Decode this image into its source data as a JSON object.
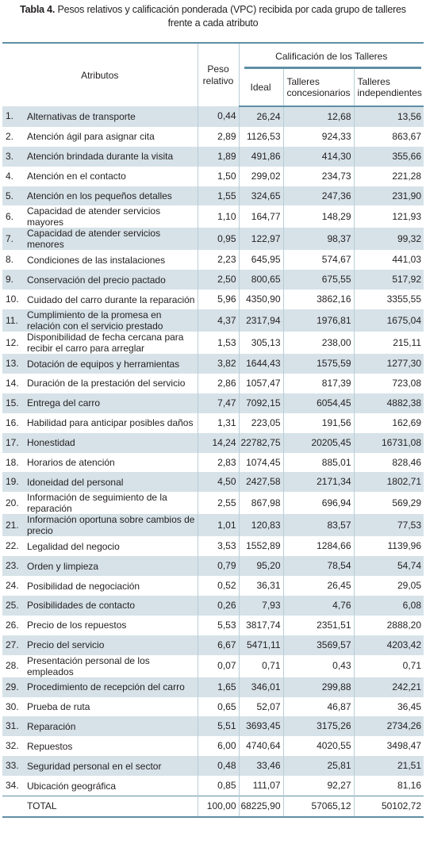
{
  "caption": {
    "label": "Tabla 4.",
    "line1": "Pesos relativos y calificación ponderada (VPC) recibida por cada grupo de talleres",
    "line2": "frente a cada atributo"
  },
  "headers": {
    "atributos": "Atributos",
    "peso_line1": "Peso",
    "peso_line2": "relativo",
    "calificacion": "Calificación de los Talleres",
    "ideal": "Ideal",
    "conc_line1": "Talleres",
    "conc_line2": "concesionarios",
    "indep_line1": "Talleres",
    "indep_line2": "independientes"
  },
  "rows": [
    {
      "num": "1.",
      "name": "Alternativas de transporte",
      "peso": "0,44",
      "ideal": "26,24",
      "conc": "12,68",
      "indep": "13,56"
    },
    {
      "num": "2.",
      "name": "Atención ágil para asignar cita",
      "peso": "2,89",
      "ideal": "1126,53",
      "conc": "924,33",
      "indep": "863,67"
    },
    {
      "num": "3.",
      "name": "Atención brindada durante la visita",
      "peso": "1,89",
      "ideal": "491,86",
      "conc": "414,30",
      "indep": "355,66"
    },
    {
      "num": "4.",
      "name": "Atención en el contacto",
      "peso": "1,50",
      "ideal": "299,02",
      "conc": "234,73",
      "indep": "221,28"
    },
    {
      "num": "5.",
      "name": "Atención en los pequeños detalles",
      "peso": "1,55",
      "ideal": "324,65",
      "conc": "247,36",
      "indep": "231,90"
    },
    {
      "num": "6.",
      "name": "Capacidad de atender servicios mayores",
      "peso": "1,10",
      "ideal": "164,77",
      "conc": "148,29",
      "indep": "121,93"
    },
    {
      "num": "7.",
      "name": "Capacidad de atender servicios menores",
      "peso": "0,95",
      "ideal": "122,97",
      "conc": "98,37",
      "indep": "99,32"
    },
    {
      "num": "8.",
      "name": "Condiciones de las instalaciones",
      "peso": "2,23",
      "ideal": "645,95",
      "conc": "574,67",
      "indep": "441,03"
    },
    {
      "num": "9.",
      "name": "Conservación del precio pactado",
      "peso": "2,50",
      "ideal": "800,65",
      "conc": "675,55",
      "indep": "517,92"
    },
    {
      "num": "10.",
      "name": "Cuidado del carro durante la reparación",
      "peso": "5,96",
      "ideal": "4350,90",
      "conc": "3862,16",
      "indep": "3355,55"
    },
    {
      "num": "11.",
      "name": "Cumplimiento de la promesa en relación con el servicio prestado",
      "peso": "4,37",
      "ideal": "2317,94",
      "conc": "1976,81",
      "indep": "1675,04"
    },
    {
      "num": "12.",
      "name": "Disponibilidad de fecha cercana para recibir el carro para arreglar",
      "peso": "1,53",
      "ideal": "305,13",
      "conc": "238,00",
      "indep": "215,11"
    },
    {
      "num": "13.",
      "name": "Dotación de equipos y herramientas",
      "peso": "3,82",
      "ideal": "1644,43",
      "conc": "1575,59",
      "indep": "1277,30"
    },
    {
      "num": "14.",
      "name": "Duración de la prestación del servicio",
      "peso": "2,86",
      "ideal": "1057,47",
      "conc": "817,39",
      "indep": "723,08"
    },
    {
      "num": "15.",
      "name": "Entrega del carro",
      "peso": "7,47",
      "ideal": "7092,15",
      "conc": "6054,45",
      "indep": "4882,38"
    },
    {
      "num": "16.",
      "name": "Habilidad para anticipar posibles daños",
      "peso": "1,31",
      "ideal": "223,05",
      "conc": "191,56",
      "indep": "162,69"
    },
    {
      "num": "17.",
      "name": "Honestidad",
      "peso": "14,24",
      "ideal": "22782,75",
      "conc": "20205,45",
      "indep": "16731,08"
    },
    {
      "num": "18.",
      "name": "Horarios de atención",
      "peso": "2,83",
      "ideal": "1074,45",
      "conc": "885,01",
      "indep": "828,46"
    },
    {
      "num": "19.",
      "name": "Idoneidad del personal",
      "peso": "4,50",
      "ideal": "2427,58",
      "conc": "2171,34",
      "indep": "1802,71"
    },
    {
      "num": "20.",
      "name": "Información de seguimiento de la reparación",
      "peso": "2,55",
      "ideal": "867,98",
      "conc": "696,94",
      "indep": "569,29"
    },
    {
      "num": "21.",
      "name": "Información oportuna sobre cambios de precio",
      "peso": "1,01",
      "ideal": "120,83",
      "conc": "83,57",
      "indep": "77,53"
    },
    {
      "num": "22.",
      "name": "Legalidad del negocio",
      "peso": "3,53",
      "ideal": "1552,89",
      "conc": "1284,66",
      "indep": "1139,96"
    },
    {
      "num": "23.",
      "name": "Orden y limpieza",
      "peso": "0,79",
      "ideal": "95,20",
      "conc": "78,54",
      "indep": "54,74"
    },
    {
      "num": "24.",
      "name": "Posibilidad de negociación",
      "peso": "0,52",
      "ideal": "36,31",
      "conc": "26,45",
      "indep": "29,05"
    },
    {
      "num": "25.",
      "name": "Posibilidades de contacto",
      "peso": "0,26",
      "ideal": "7,93",
      "conc": "4,76",
      "indep": "6,08"
    },
    {
      "num": "26.",
      "name": "Precio de los repuestos",
      "peso": "5,53",
      "ideal": "3817,74",
      "conc": "2351,51",
      "indep": "2888,20"
    },
    {
      "num": "27.",
      "name": "Precio del servicio",
      "peso": "6,67",
      "ideal": "5471,11",
      "conc": "3569,57",
      "indep": "4203,42"
    },
    {
      "num": "28.",
      "name": "Presentación personal de los empleados",
      "peso": "0,07",
      "ideal": "0,71",
      "conc": "0,43",
      "indep": "0,71"
    },
    {
      "num": "29.",
      "name": "Procedimiento de recepción del carro",
      "peso": "1,65",
      "ideal": "346,01",
      "conc": "299,88",
      "indep": "242,21"
    },
    {
      "num": "30.",
      "name": "Prueba de ruta",
      "peso": "0,65",
      "ideal": "52,07",
      "conc": "46,87",
      "indep": "36,45"
    },
    {
      "num": "31.",
      "name": "Reparación",
      "peso": "5,51",
      "ideal": "3693,45",
      "conc": "3175,26",
      "indep": "2734,26"
    },
    {
      "num": "32.",
      "name": "Repuestos",
      "peso": "6,00",
      "ideal": "4740,64",
      "conc": "4020,55",
      "indep": "3498,47"
    },
    {
      "num": "33.",
      "name": "Seguridad personal en el sector",
      "peso": "0,48",
      "ideal": "33,46",
      "conc": "25,81",
      "indep": "21,51"
    },
    {
      "num": "34.",
      "name": "Ubicación geográfica",
      "peso": "0,85",
      "ideal": "111,07",
      "conc": "92,27",
      "indep": "81,16"
    }
  ],
  "total": {
    "label": "TOTAL",
    "peso": "100,00",
    "ideal": "68225,90",
    "conc": "57065,12",
    "indep": "50102,72"
  },
  "colors": {
    "accent": "#5f8fa4",
    "stripe": "#d6e2e8"
  }
}
